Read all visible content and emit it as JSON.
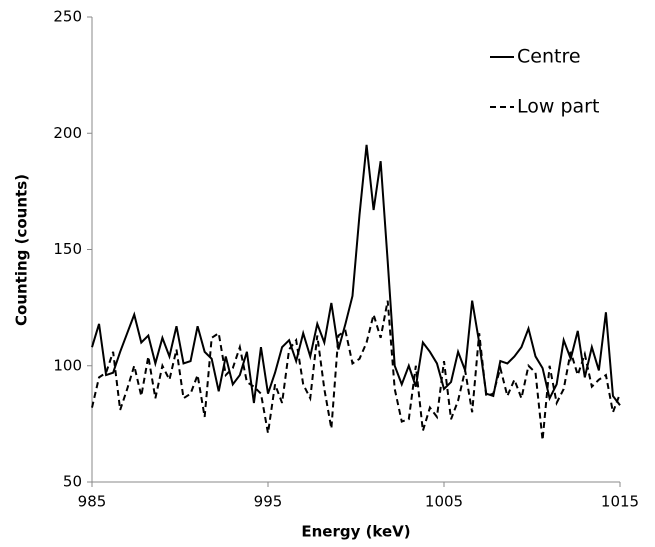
{
  "chart_data": {
    "type": "line",
    "xlabel": "Energy (keV)",
    "ylabel": "Counting (counts)",
    "x": [
      985,
      985.4,
      985.8,
      986.2,
      986.6,
      987,
      987.4,
      987.8,
      988.2,
      988.6,
      989,
      989.4,
      989.8,
      990.2,
      990.6,
      991,
      991.4,
      991.8,
      992.2,
      992.6,
      993,
      993.4,
      993.8,
      994.2,
      994.6,
      995,
      995.4,
      995.8,
      996.2,
      996.6,
      997,
      997.4,
      997.8,
      998.2,
      998.6,
      999,
      999.4,
      999.8,
      1000.2,
      1000.6,
      1001,
      1001.4,
      1001.8,
      1002.2,
      1002.6,
      1003,
      1003.4,
      1003.8,
      1004.2,
      1004.6,
      1005,
      1005.4,
      1005.8,
      1006.2,
      1006.6,
      1007,
      1007.4,
      1007.8,
      1008.2,
      1008.6,
      1009,
      1009.4,
      1009.8,
      1010.2,
      1010.6,
      1011,
      1011.4,
      1011.8,
      1012.2,
      1012.6,
      1013,
      1013.4,
      1013.8,
      1014.2,
      1014.6,
      1015
    ],
    "series": [
      {
        "name": "Centre",
        "color": "#000000",
        "dash": "solid",
        "values": [
          108,
          118,
          96,
          97,
          106,
          114,
          122,
          110,
          113,
          101,
          112,
          104,
          117,
          101,
          102,
          117,
          106,
          103,
          89,
          104,
          92,
          96,
          106,
          84,
          108,
          88,
          97,
          108,
          111,
          102,
          114,
          104,
          118,
          110,
          127,
          107,
          118,
          130,
          165,
          195,
          167,
          188,
          145,
          100,
          92,
          100,
          91,
          110,
          106,
          101,
          90,
          93,
          106,
          98,
          128,
          110,
          88,
          87,
          102,
          101,
          104,
          108,
          116,
          104,
          99,
          86,
          92,
          111,
          103,
          115,
          95,
          108,
          98,
          123,
          87,
          83
        ]
      },
      {
        "name": "Low part",
        "color": "#000000",
        "dash": "dashed",
        "values": [
          82,
          95,
          97,
          106,
          81,
          90,
          100,
          87,
          104,
          86,
          100,
          94,
          107,
          86,
          88,
          96,
          78,
          112,
          114,
          96,
          99,
          108,
          93,
          91,
          88,
          71,
          92,
          84,
          107,
          111,
          92,
          86,
          113,
          90,
          73,
          113,
          115,
          101,
          103,
          110,
          122,
          112,
          128,
          90,
          76,
          77,
          100,
          72,
          82,
          78,
          102,
          77,
          85,
          98,
          80,
          114,
          87,
          88,
          99,
          87,
          94,
          86,
          100,
          97,
          68,
          100,
          84,
          90,
          106,
          96,
          105,
          91,
          94,
          96,
          80,
          88
        ]
      }
    ],
    "xlim": [
      985,
      1015
    ],
    "xticks": [
      985,
      995,
      1005,
      1015
    ],
    "ylim": [
      50,
      250
    ],
    "yticks": [
      50,
      100,
      150,
      200,
      250
    ],
    "grid": false,
    "legend": "upper right"
  }
}
